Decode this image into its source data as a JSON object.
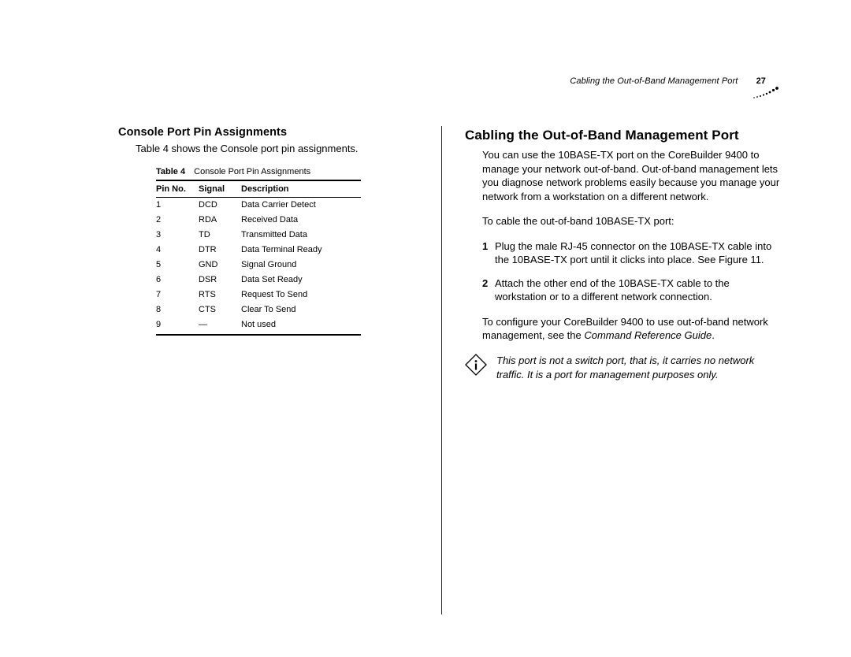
{
  "header": {
    "running_title": "Cabling the Out-of-Band Management Port",
    "page_number": "27"
  },
  "left": {
    "heading": "Console Port Pin Assignments",
    "intro": "Table 4 shows the Console port pin assignments.",
    "table": {
      "caption_label": "Table 4",
      "caption_text": "Console Port Pin Assignments",
      "columns": [
        "Pin No.",
        "Signal",
        "Description"
      ],
      "rows": [
        [
          "1",
          "DCD",
          "Data Carrier Detect"
        ],
        [
          "2",
          "RDA",
          "Received Data"
        ],
        [
          "3",
          "TD",
          "Transmitted Data"
        ],
        [
          "4",
          "DTR",
          "Data Terminal Ready"
        ],
        [
          "5",
          "GND",
          "Signal Ground"
        ],
        [
          "6",
          "DSR",
          "Data Set Ready"
        ],
        [
          "7",
          "RTS",
          "Request To Send"
        ],
        [
          "8",
          "CTS",
          "Clear To Send"
        ],
        [
          "9",
          "—",
          "Not used"
        ]
      ]
    }
  },
  "right": {
    "heading": "Cabling the Out-of-Band Management Port",
    "p1": "You can use the 10BASE-TX port on the CoreBuilder 9400 to manage your network out-of-band. Out-of-band management lets you diagnose network problems easily because you manage your network from a workstation on a different network.",
    "p2": "To cable the out-of-band 10BASE-TX port:",
    "steps": [
      "Plug the male RJ-45 connector on the 10BASE-TX cable into the 10BASE-TX port until it clicks into place. See Figure 11.",
      "Attach the other end of the 10BASE-TX cable to the workstation or to a different network connection."
    ],
    "p3_pre": "To configure your CoreBuilder 9400 to use out-of-band network management, see the ",
    "p3_ital": "Command Reference Guide",
    "p3_post": ".",
    "note": "This port is not a switch port, that is, it carries no network traffic. It is a port for management purposes only."
  },
  "colors": {
    "text": "#000000",
    "background": "#ffffff"
  }
}
